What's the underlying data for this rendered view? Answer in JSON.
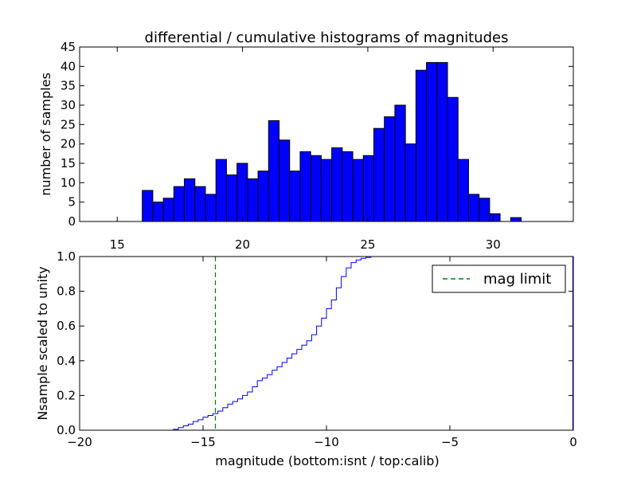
{
  "title": "differential / cumulative histograms of magnitudes",
  "colors": {
    "bar": "#0000ff",
    "edge": "#000000",
    "line": "#0000ff",
    "maglimit": "#008000"
  },
  "chart_data": [
    {
      "type": "bar",
      "subtype": "histogram",
      "title": "differential / cumulative histograms of magnitudes",
      "xlabel": "",
      "ylabel": "number of samples",
      "xlim": [
        13.5,
        33.2
      ],
      "ylim": [
        0,
        45
      ],
      "xticks": [
        "15",
        "20",
        "25",
        "30"
      ],
      "xtick_values": [
        15,
        20,
        25,
        30
      ],
      "xaxis_position": "top",
      "yticks": [
        "0",
        "5",
        "10",
        "15",
        "20",
        "25",
        "30",
        "35",
        "40",
        "45"
      ],
      "ytick_values": [
        0,
        5,
        10,
        15,
        20,
        25,
        30,
        35,
        40,
        45
      ],
      "bin_width": 0.42,
      "bin_starts": [
        16.0,
        16.42,
        16.84,
        17.26,
        17.68,
        18.1,
        18.52,
        18.94,
        19.36,
        19.78,
        20.2,
        20.62,
        21.04,
        21.46,
        21.88,
        22.3,
        22.72,
        23.14,
        23.56,
        23.98,
        24.4,
        24.82,
        25.24,
        25.66,
        26.08,
        26.5,
        26.92,
        27.34,
        27.76,
        28.18,
        28.6,
        29.02,
        29.44,
        29.86,
        30.28,
        30.7
      ],
      "values": [
        8,
        5,
        6,
        9,
        11,
        9,
        7,
        16,
        12,
        15,
        11,
        13,
        26,
        21,
        13,
        18,
        17,
        16,
        19,
        18,
        16,
        17,
        24,
        27,
        30,
        20,
        39,
        41,
        41,
        32,
        16,
        7,
        6,
        2,
        0,
        1
      ]
    },
    {
      "type": "line",
      "subtype": "step",
      "title": "",
      "xlabel": "magnitude (bottom:isnt / top:calib)",
      "ylabel": "Nsample scaled to unity",
      "xlim": [
        -20,
        0
      ],
      "ylim": [
        0,
        1
      ],
      "xticks": [
        "−20",
        "−15",
        "−10",
        "−5",
        "0"
      ],
      "xtick_values": [
        -20,
        -15,
        -10,
        -5,
        0
      ],
      "yticks": [
        "0.0",
        "0.2",
        "0.4",
        "0.6",
        "0.8",
        "1.0"
      ],
      "ytick_values": [
        0,
        0.2,
        0.4,
        0.6,
        0.8,
        1.0
      ],
      "legend": {
        "label": "mag limit",
        "position": "top-right"
      },
      "mag_limit": -14.5,
      "series": [
        {
          "name": "cumulative",
          "x": [
            -20,
            -16.2,
            -16.0,
            -15.8,
            -15.6,
            -15.4,
            -15.2,
            -15.0,
            -14.8,
            -14.6,
            -14.4,
            -14.2,
            -14.0,
            -13.8,
            -13.6,
            -13.4,
            -13.2,
            -13.0,
            -12.8,
            -12.6,
            -12.4,
            -12.2,
            -12.0,
            -11.8,
            -11.6,
            -11.4,
            -11.2,
            -11.0,
            -10.8,
            -10.6,
            -10.4,
            -10.2,
            -10.0,
            -9.8,
            -9.6,
            -9.4,
            -9.2,
            -9.0,
            -8.8,
            -8.6,
            -8.4,
            -8.2,
            -0.02
          ],
          "y": [
            0.0,
            0.005,
            0.015,
            0.025,
            0.035,
            0.05,
            0.06,
            0.075,
            0.085,
            0.095,
            0.11,
            0.13,
            0.15,
            0.165,
            0.18,
            0.2,
            0.22,
            0.25,
            0.285,
            0.3,
            0.32,
            0.345,
            0.365,
            0.39,
            0.415,
            0.44,
            0.465,
            0.49,
            0.515,
            0.55,
            0.6,
            0.645,
            0.7,
            0.75,
            0.82,
            0.885,
            0.935,
            0.965,
            0.98,
            0.99,
            0.995,
            1.0,
            1.0
          ]
        }
      ]
    }
  ]
}
